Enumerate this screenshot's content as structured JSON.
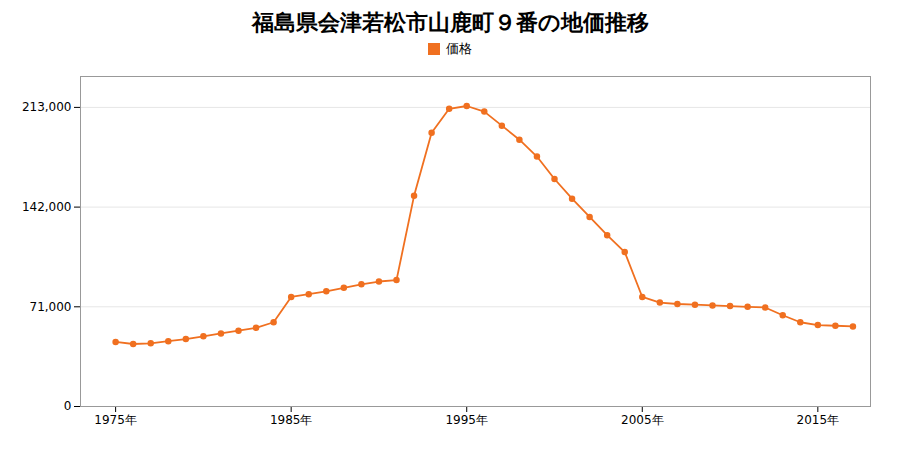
{
  "chart_data": {
    "type": "line",
    "title": "福島県会津若松市山鹿町９番の地価推移",
    "x": [
      1975,
      1976,
      1977,
      1978,
      1979,
      1980,
      1981,
      1982,
      1983,
      1984,
      1985,
      1986,
      1987,
      1988,
      1989,
      1990,
      1991,
      1992,
      1993,
      1994,
      1995,
      1996,
      1997,
      1998,
      1999,
      2000,
      2001,
      2002,
      2003,
      2004,
      2005,
      2006,
      2007,
      2008,
      2009,
      2010,
      2011,
      2012,
      2013,
      2014,
      2015,
      2016,
      2017
    ],
    "series": [
      {
        "name": "価格",
        "color": "#f07020",
        "marker": "circle",
        "values": [
          46000,
          44500,
          45000,
          46500,
          48000,
          50000,
          52000,
          54000,
          56000,
          60000,
          78000,
          80000,
          82000,
          84500,
          87000,
          89000,
          90000,
          150000,
          195000,
          212000,
          214000,
          210000,
          200000,
          190000,
          178000,
          162000,
          148000,
          135000,
          122000,
          110000,
          78000,
          74000,
          73000,
          72500,
          72000,
          71500,
          71000,
          70500,
          65000,
          60000,
          58000,
          57500,
          57000
        ]
      }
    ],
    "xlim": [
      1973,
      2018
    ],
    "xticks": [
      {
        "value": 1975,
        "label": "1975年"
      },
      {
        "value": 1985,
        "label": "1985年"
      },
      {
        "value": 1995,
        "label": "1995年"
      },
      {
        "value": 2005,
        "label": "2005年"
      },
      {
        "value": 2015,
        "label": "2015年"
      }
    ],
    "ylim": [
      0,
      235000
    ],
    "yticks": [
      0,
      {
        "value": 71000,
        "label": "71,000"
      },
      {
        "value": 142000,
        "label": "142,000"
      },
      {
        "value": 213000,
        "label": "213,000"
      }
    ],
    "grid": "y",
    "legend": "top"
  }
}
